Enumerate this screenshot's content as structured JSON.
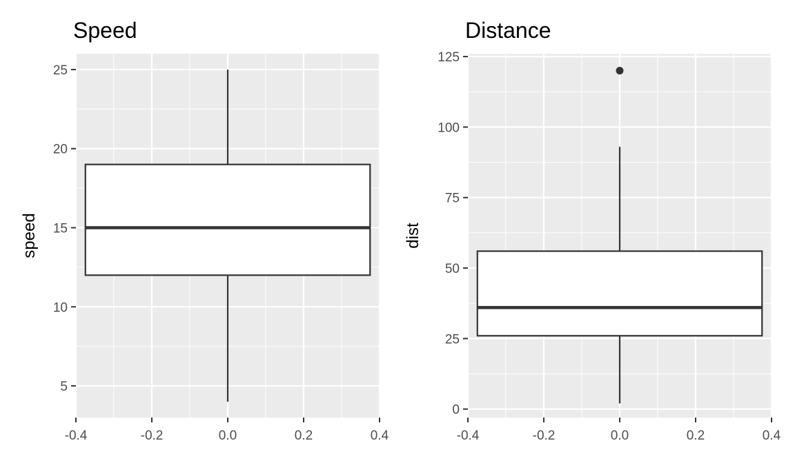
{
  "chart_data": [
    {
      "type": "boxplot",
      "title": "Speed",
      "xlabel": "",
      "ylabel": "speed",
      "xlim": [
        -0.4,
        0.4
      ],
      "ylim": [
        3,
        26
      ],
      "x_ticks": [
        "-0.4",
        "-0.2",
        "0.0",
        "0.2",
        "0.4"
      ],
      "y_ticks": [
        "5",
        "10",
        "15",
        "20",
        "25"
      ],
      "grid": true,
      "box": {
        "x_center": 0.0,
        "x_min": -0.375,
        "x_max": 0.375,
        "whisker_low": 4,
        "q1": 12,
        "median": 15,
        "q3": 19,
        "whisker_high": 25,
        "outliers": []
      }
    },
    {
      "type": "boxplot",
      "title": "Distance",
      "xlabel": "",
      "ylabel": "dist",
      "xlim": [
        -0.4,
        0.4
      ],
      "ylim": [
        -3,
        126
      ],
      "x_ticks": [
        "-0.4",
        "-0.2",
        "0.0",
        "0.2",
        "0.4"
      ],
      "y_ticks": [
        "0",
        "25",
        "50",
        "75",
        "100",
        "125"
      ],
      "grid": true,
      "box": {
        "x_center": 0.0,
        "x_min": -0.375,
        "x_max": 0.375,
        "whisker_low": 2,
        "q1": 26,
        "median": 36,
        "q3": 56,
        "whisker_high": 93,
        "outliers": [
          120
        ]
      }
    }
  ],
  "colors": {
    "panel_background": "#ebebeb",
    "grid": "#ffffff",
    "box_fill": "#ffffff",
    "box_stroke": "#333333",
    "tick_text": "#4d4d4d",
    "tick_mark": "#333333"
  }
}
